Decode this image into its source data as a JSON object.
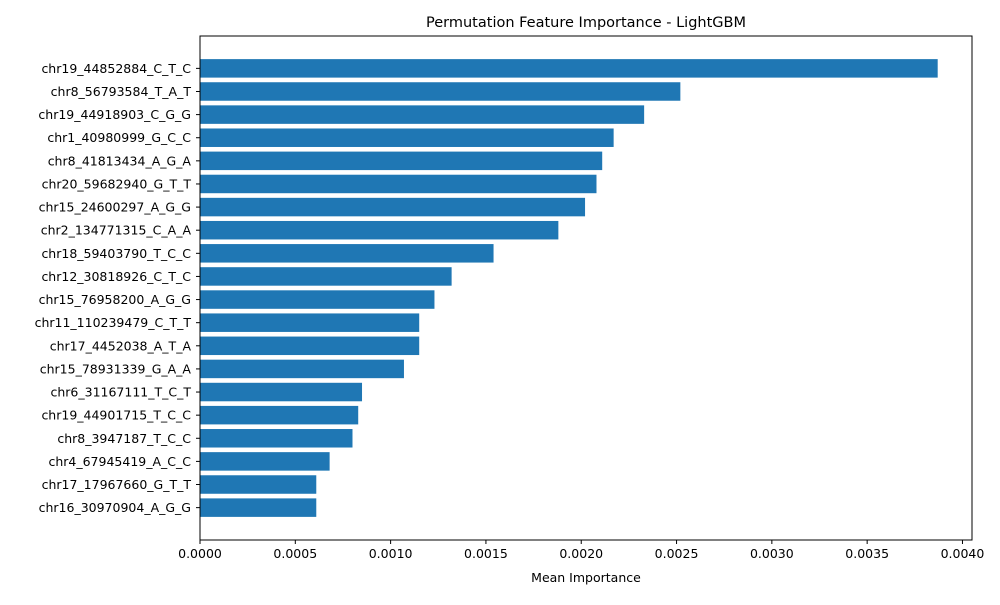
{
  "chart_data": {
    "type": "bar",
    "orientation": "horizontal",
    "title": "Permutation Feature Importance - LightGBM",
    "xlabel": "Mean Importance",
    "ylabel": "",
    "xlim": [
      0.0,
      0.00405
    ],
    "x_ticks": [
      "0.0000",
      "0.0005",
      "0.0010",
      "0.0015",
      "0.0020",
      "0.0025",
      "0.0030",
      "0.0035",
      "0.0040"
    ],
    "x_tick_values": [
      0.0,
      0.0005,
      0.001,
      0.0015,
      0.002,
      0.0025,
      0.003,
      0.0035,
      0.004
    ],
    "grid": false,
    "bar_color": "#1f77b4",
    "categories": [
      "chr19_44852884_C_T_C",
      "chr8_56793584_T_A_T",
      "chr19_44918903_C_G_G",
      "chr1_40980999_G_C_C",
      "chr8_41813434_A_G_A",
      "chr20_59682940_G_T_T",
      "chr15_24600297_A_G_G",
      "chr2_134771315_C_A_A",
      "chr18_59403790_T_C_C",
      "chr12_30818926_C_T_C",
      "chr15_76958200_A_G_G",
      "chr11_110239479_C_T_T",
      "chr17_4452038_A_T_A",
      "chr15_78931339_G_A_A",
      "chr6_31167111_T_C_T",
      "chr19_44901715_T_C_C",
      "chr8_3947187_T_C_C",
      "chr4_67945419_A_C_C",
      "chr17_17967660_G_T_T",
      "chr16_30970904_A_G_G"
    ],
    "values": [
      0.00387,
      0.00252,
      0.00233,
      0.00217,
      0.00211,
      0.00208,
      0.00202,
      0.00188,
      0.00154,
      0.00132,
      0.00123,
      0.00115,
      0.00115,
      0.00107,
      0.00085,
      0.00083,
      0.0008,
      0.00068,
      0.00061,
      0.00061
    ]
  }
}
